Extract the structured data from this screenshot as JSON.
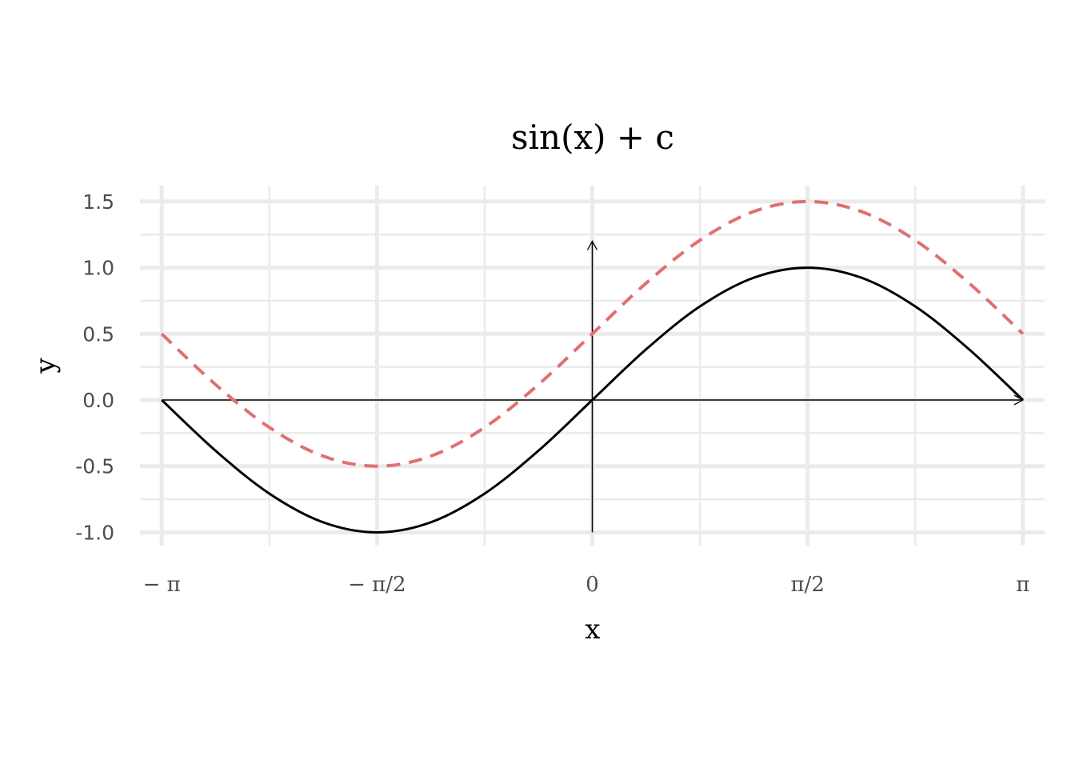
{
  "chart_data": {
    "type": "line",
    "title": "sin(x) + c",
    "xlabel": "x",
    "ylabel": "y",
    "xlim": [
      -3.3,
      3.3
    ],
    "ylim": [
      -1.1,
      1.62
    ],
    "grid": true,
    "legend": "none",
    "x_ticks": [
      {
        "value": -3.14159,
        "label": "− π"
      },
      {
        "value": -1.5708,
        "label": "− π/2"
      },
      {
        "value": 0,
        "label": "0"
      },
      {
        "value": 1.5708,
        "label": "π/2"
      },
      {
        "value": 3.14159,
        "label": "π"
      }
    ],
    "y_ticks": [
      {
        "value": -1.0,
        "label": "-1.0"
      },
      {
        "value": -0.5,
        "label": "-0.5"
      },
      {
        "value": 0.0,
        "label": "0.0"
      },
      {
        "value": 0.5,
        "label": "0.5"
      },
      {
        "value": 1.0,
        "label": "1.0"
      },
      {
        "value": 1.5,
        "label": "1.5"
      }
    ],
    "series": [
      {
        "color": "#e07070",
        "line_style": "dashed",
        "x": [
          -3.1416,
          -2.7489,
          -2.3562,
          -1.9635,
          -1.5708,
          -1.1781,
          -0.7854,
          -0.3927,
          0.0,
          0.3927,
          0.7854,
          1.1781,
          1.5708,
          1.9635,
          2.3562,
          2.7489,
          3.1416
        ],
        "y": [
          0.5,
          0.117,
          -0.207,
          -0.424,
          -0.5,
          -0.424,
          -0.207,
          0.117,
          0.5,
          0.883,
          1.207,
          1.424,
          1.5,
          1.424,
          1.207,
          0.883,
          0.5
        ]
      },
      {
        "color": "#000000",
        "line_style": "solid",
        "x": [
          -3.1416,
          -2.7489,
          -2.3562,
          -1.9635,
          -1.5708,
          -1.1781,
          -0.7854,
          -0.3927,
          0.0,
          0.3927,
          0.7854,
          1.1781,
          1.5708,
          1.9635,
          2.3562,
          2.7489,
          3.1416
        ],
        "y": [
          0.0,
          -0.383,
          -0.707,
          -0.924,
          -1.0,
          -0.924,
          -0.707,
          -0.383,
          0.0,
          0.383,
          0.707,
          0.924,
          1.0,
          0.924,
          0.707,
          0.383,
          0.0
        ]
      }
    ],
    "arrows": [
      {
        "name": "x-axis-arrow",
        "x": [
          -3.1416,
          3.1416
        ],
        "y": [
          0,
          0
        ]
      },
      {
        "name": "y-axis-arrow",
        "x": [
          0,
          0
        ],
        "y": [
          -1.0,
          1.2
        ]
      }
    ]
  }
}
